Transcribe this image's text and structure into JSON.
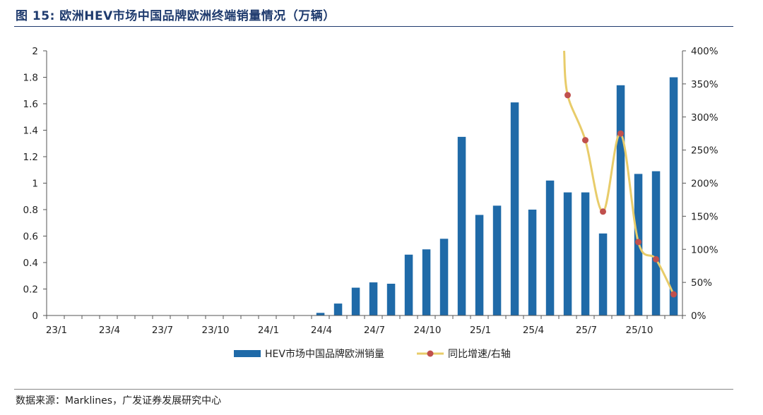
{
  "figure": {
    "title": "图  15:  欧洲HEV市场中国品牌欧洲终端销量情况（万辆）",
    "source": "数据来源：Marklines，广发证券发展研究中心"
  },
  "colors": {
    "bar": "#1f6aa8",
    "line": "#e8cc6a",
    "marker": "#c0504d",
    "title": "#1f3b6e"
  },
  "chart_data": {
    "type": "bar",
    "categories": [
      "23/1",
      "23/2",
      "23/3",
      "23/4",
      "23/5",
      "23/6",
      "23/7",
      "23/8",
      "23/9",
      "23/10",
      "23/11",
      "23/12",
      "24/1",
      "24/2",
      "24/3",
      "24/4",
      "24/5",
      "24/6",
      "24/7",
      "24/8",
      "24/9",
      "24/10",
      "24/11",
      "24/12",
      "25/1",
      "25/2",
      "25/3",
      "25/4",
      "25/5",
      "25/6",
      "25/7",
      "25/8",
      "25/9",
      "25/10",
      "25/11",
      "25/12"
    ],
    "x_tick_labels": [
      "23/1",
      "23/4",
      "23/7",
      "23/10",
      "24/1",
      "24/4",
      "24/7",
      "24/10",
      "25/1",
      "25/4",
      "25/7",
      "25/10"
    ],
    "series": [
      {
        "name": "HEV市场中国品牌欧洲销量",
        "type": "bar",
        "axis": "left",
        "values": [
          0,
          0,
          0,
          0,
          0,
          0,
          0,
          0,
          0,
          0,
          0,
          0,
          0,
          0,
          0,
          0.02,
          0.09,
          0.21,
          0.25,
          0.24,
          0.46,
          0.5,
          0.58,
          1.35,
          0.76,
          0.83,
          1.61,
          0.8,
          1.02,
          0.93,
          0.93,
          0.62,
          1.74,
          1.07,
          1.09,
          1.8
        ]
      },
      {
        "name": "同比增速/右轴",
        "type": "line",
        "axis": "right",
        "values": [
          null,
          null,
          null,
          null,
          null,
          null,
          null,
          null,
          null,
          null,
          null,
          null,
          null,
          null,
          null,
          null,
          null,
          null,
          null,
          null,
          null,
          null,
          null,
          null,
          null,
          null,
          null,
          null,
          null,
          3.33,
          2.65,
          1.57,
          2.75,
          1.11,
          0.85,
          0.32
        ]
      }
    ],
    "y_left": {
      "ylim": [
        0,
        2
      ],
      "ticks": [
        "0",
        "0.2",
        "0.4",
        "0.6",
        "0.8",
        "1",
        "1.2",
        "1.4",
        "1.6",
        "1.8",
        "2"
      ]
    },
    "y_right": {
      "ylim": [
        0,
        4
      ],
      "ticks": [
        "0%",
        "50%",
        "100%",
        "150%",
        "200%",
        "250%",
        "300%",
        "350%",
        "400%"
      ]
    },
    "grid": false,
    "legend_position": "bottom"
  }
}
